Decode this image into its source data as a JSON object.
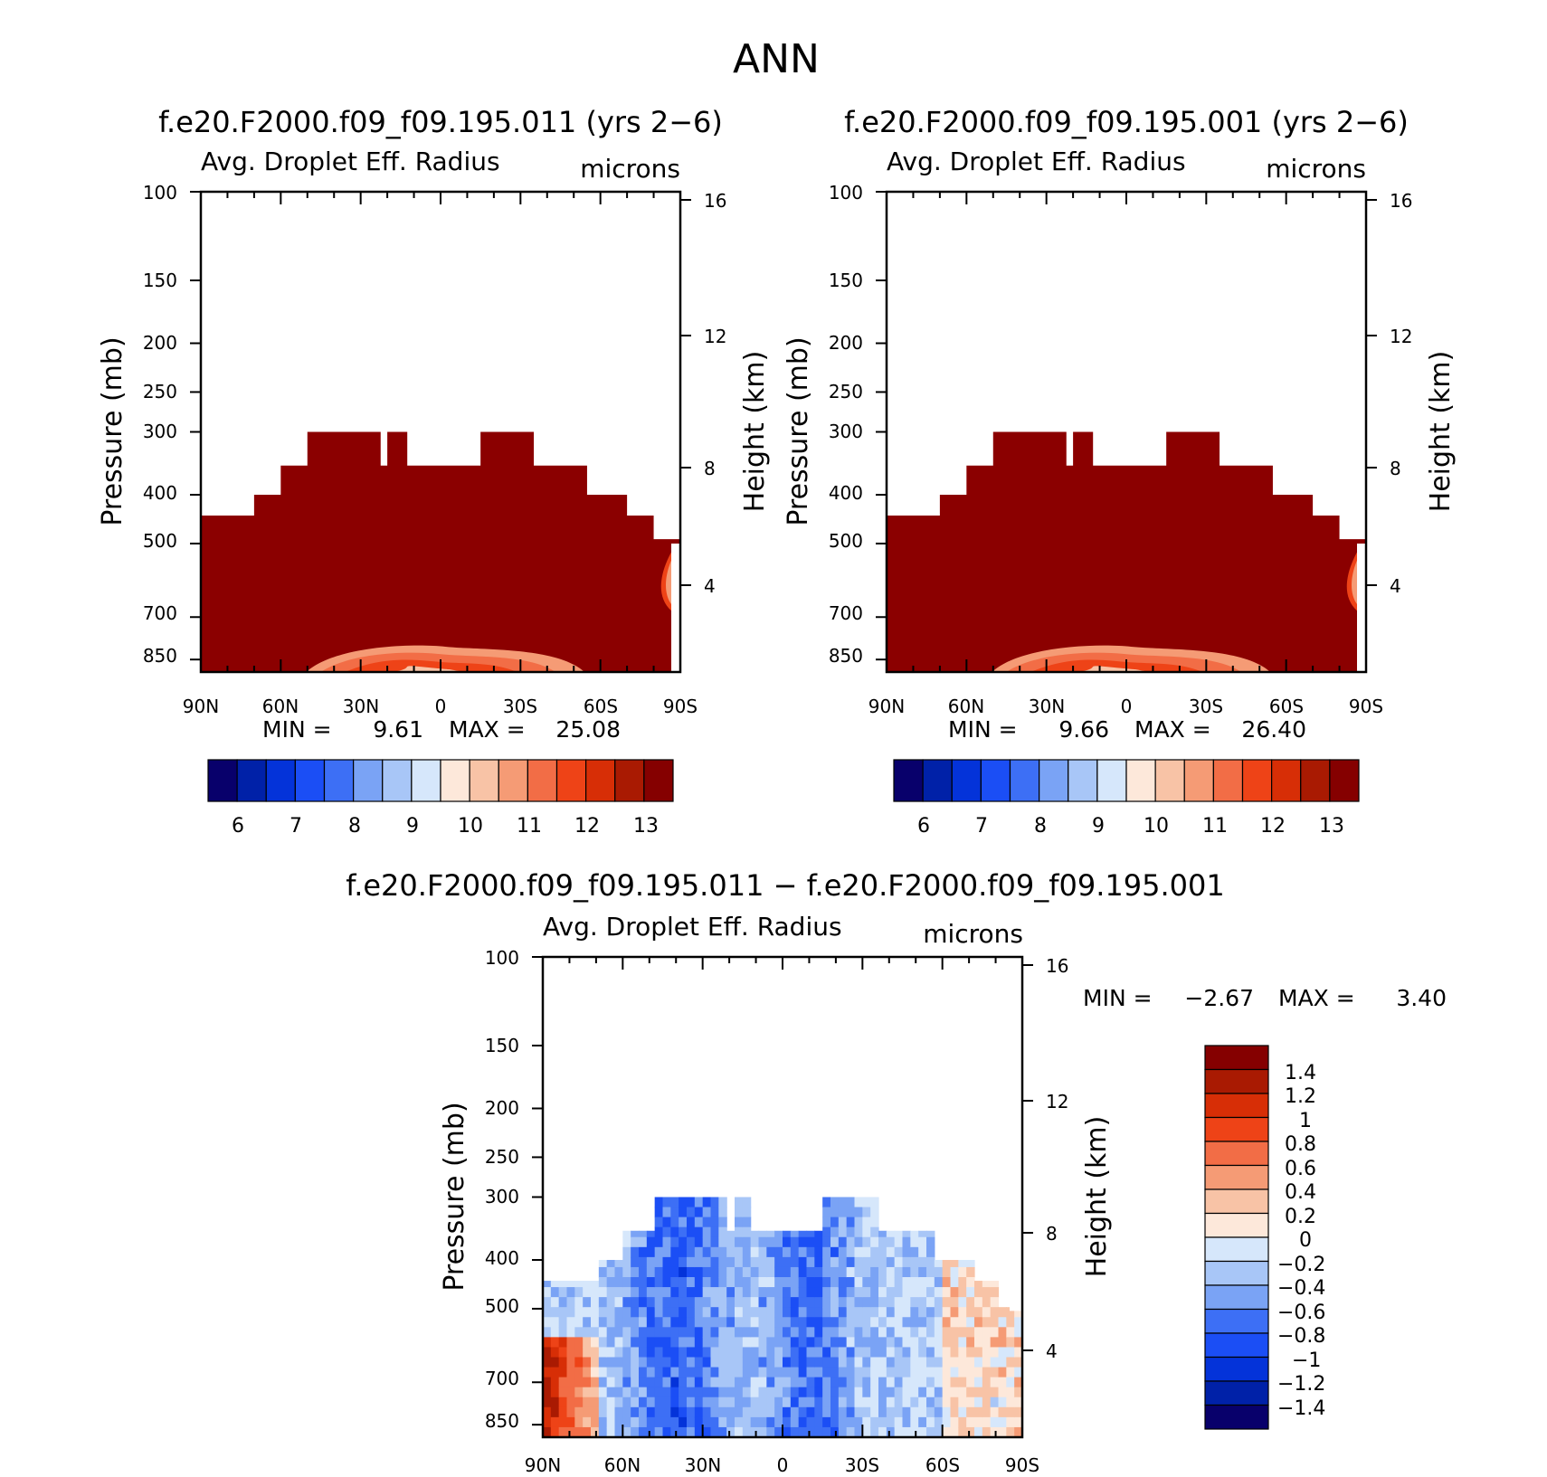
{
  "page_title": "ANN",
  "colors": {
    "seq_levels": [
      "#08006b",
      "#0021a8",
      "#0433d9",
      "#1b4ef5",
      "#3d6ff5",
      "#7aa3f5",
      "#a8c6f7",
      "#d6e7fb",
      "#fde8da",
      "#f8c3a6",
      "#f59b75",
      "#f26d46",
      "#ee4317",
      "#d72e06",
      "#a91a02",
      "#850000"
    ],
    "diff_levels": [
      "#08006b",
      "#0021a8",
      "#0433d9",
      "#1b4ef5",
      "#3d6ff5",
      "#7aa3f5",
      "#a8c6f7",
      "#d6e7fb",
      "#fde8da",
      "#f8c3a6",
      "#f59b75",
      "#f26d46",
      "#ee4317",
      "#d72e06",
      "#a91a02",
      "#850000"
    ],
    "field_max": "#8b0000"
  },
  "chart_data": [
    {
      "id": "panel_a",
      "type": "heatmap",
      "title": "f.e20.F2000.f09_f09.195.011 (yrs 2−6)",
      "variable": "Avg. Droplet Eff. Radius",
      "units": "microns",
      "ylabel": "Pressure (mb)",
      "ylabel_right": "Height (km)",
      "x_ticks": [
        "90N",
        "60N",
        "30N",
        "0",
        "30S",
        "60S",
        "90S"
      ],
      "y_ticks": [
        100,
        150,
        200,
        250,
        300,
        400,
        500,
        700,
        850
      ],
      "y_ticks_right": [
        16,
        12,
        8,
        4
      ],
      "ylim": [
        100,
        900
      ],
      "min_label": "MIN =",
      "min_value": "9.61",
      "max_label": "MAX =",
      "max_value": "25.08",
      "colorbar_labels": [
        "6",
        "7",
        "8",
        "9",
        "10",
        "11",
        "12",
        "13"
      ],
      "cloud_top_pressure_mb": [
        440,
        440,
        440,
        440,
        440,
        440,
        440,
        440,
        400,
        400,
        400,
        400,
        350,
        350,
        350,
        350,
        300,
        300,
        300,
        300,
        300,
        300,
        300,
        300,
        300,
        300,
        300,
        350,
        300,
        300,
        300,
        350,
        350,
        350,
        350,
        350,
        350,
        350,
        350,
        350,
        350,
        350,
        300,
        300,
        300,
        300,
        300,
        300,
        300,
        300,
        350,
        350,
        350,
        350,
        350,
        350,
        350,
        350,
        400,
        400,
        400,
        400,
        400,
        400,
        440,
        440,
        440,
        440,
        490,
        490,
        490,
        490
      ]
    },
    {
      "id": "panel_b",
      "type": "heatmap",
      "title": "f.e20.F2000.f09_f09.195.001 (yrs 2−6)",
      "variable": "Avg. Droplet Eff. Radius",
      "units": "microns",
      "ylabel": "Pressure (mb)",
      "ylabel_right": "Height (km)",
      "x_ticks": [
        "90N",
        "60N",
        "30N",
        "0",
        "30S",
        "60S",
        "90S"
      ],
      "y_ticks": [
        100,
        150,
        200,
        250,
        300,
        400,
        500,
        700,
        850
      ],
      "y_ticks_right": [
        16,
        12,
        8,
        4
      ],
      "ylim": [
        100,
        900
      ],
      "min_label": "MIN =",
      "min_value": "9.66",
      "max_label": "MAX =",
      "max_value": "26.40",
      "colorbar_labels": [
        "6",
        "7",
        "8",
        "9",
        "10",
        "11",
        "12",
        "13"
      ],
      "cloud_top_pressure_mb": [
        440,
        440,
        440,
        440,
        440,
        440,
        440,
        440,
        400,
        400,
        400,
        400,
        350,
        350,
        350,
        350,
        300,
        300,
        300,
        300,
        300,
        300,
        300,
        300,
        300,
        300,
        300,
        350,
        300,
        300,
        300,
        350,
        350,
        350,
        350,
        350,
        350,
        350,
        350,
        350,
        350,
        350,
        300,
        300,
        300,
        300,
        300,
        300,
        300,
        300,
        350,
        350,
        350,
        350,
        350,
        350,
        350,
        350,
        400,
        400,
        400,
        400,
        400,
        400,
        440,
        440,
        440,
        440,
        490,
        490,
        490,
        490
      ]
    },
    {
      "id": "panel_diff",
      "type": "heatmap",
      "title": "f.e20.F2000.f09_f09.195.011 − f.e20.F2000.f09_f09.195.001",
      "variable": "Avg. Droplet Eff. Radius",
      "units": "microns",
      "ylabel": "Pressure (mb)",
      "ylabel_right": "Height (km)",
      "x_ticks": [
        "90N",
        "60N",
        "30N",
        "0",
        "30S",
        "60S",
        "90S"
      ],
      "y_ticks": [
        100,
        150,
        200,
        250,
        300,
        400,
        500,
        700,
        850
      ],
      "y_ticks_right": [
        16,
        12,
        8,
        4
      ],
      "ylim": [
        100,
        900
      ],
      "min_label": "MIN =",
      "min_value": "−2.67",
      "max_label": "MAX =",
      "max_value": "3.40",
      "colorbar_labels": [
        "1.4",
        "1.2",
        "1",
        "0.8",
        "0.6",
        "0.4",
        "0.2",
        "0",
        "−0.2",
        "−0.4",
        "−0.6",
        "−0.8",
        "−1",
        "−1.2",
        "−1.4"
      ]
    }
  ]
}
